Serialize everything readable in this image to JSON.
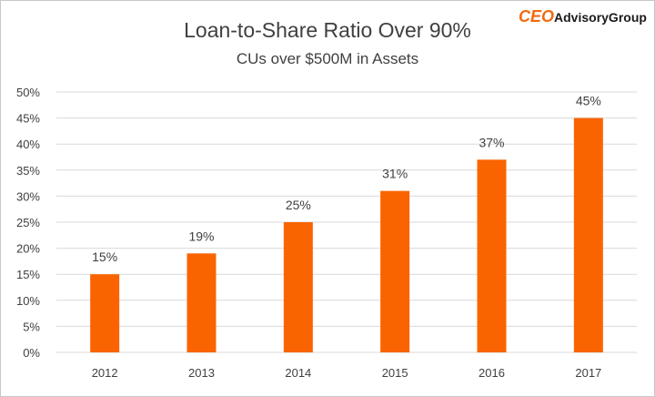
{
  "logo": {
    "part1": "CEO",
    "part2": "AdvisoryGroup"
  },
  "colors": {
    "bar": "#fa6400",
    "text": "#404040",
    "grid": "#d9d9d9",
    "logo_accent": "#f26a10"
  },
  "chart_data": {
    "type": "bar",
    "title": "Loan-to-Share Ratio Over 90%",
    "subtitle": "CUs over $500M  in Assets",
    "categories": [
      "2012",
      "2013",
      "2014",
      "2015",
      "2016",
      "2017"
    ],
    "values": [
      15,
      19,
      25,
      31,
      37,
      45
    ],
    "value_labels": [
      "15%",
      "19%",
      "25%",
      "31%",
      "37%",
      "45%"
    ],
    "ylim": [
      0,
      50
    ],
    "yticks": [
      0,
      5,
      10,
      15,
      20,
      25,
      30,
      35,
      40,
      45,
      50
    ],
    "ytick_labels": [
      "0%",
      "5%",
      "10%",
      "15%",
      "20%",
      "25%",
      "30%",
      "35%",
      "40%",
      "45%",
      "50%"
    ],
    "xlabel": "",
    "ylabel": "",
    "grid": true,
    "legend": "none"
  }
}
